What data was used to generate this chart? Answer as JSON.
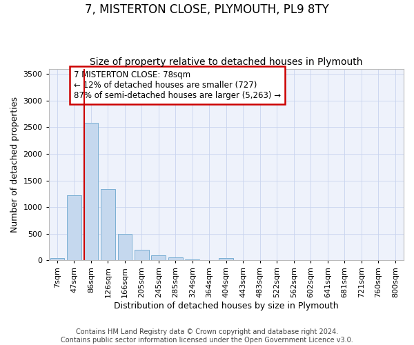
{
  "title": "7, MISTERTON CLOSE, PLYMOUTH, PL9 8TY",
  "subtitle": "Size of property relative to detached houses in Plymouth",
  "xlabel": "Distribution of detached houses by size in Plymouth",
  "ylabel": "Number of detached properties",
  "categories": [
    "7sqm",
    "47sqm",
    "86sqm",
    "126sqm",
    "166sqm",
    "205sqm",
    "245sqm",
    "285sqm",
    "324sqm",
    "364sqm",
    "404sqm",
    "443sqm",
    "483sqm",
    "522sqm",
    "562sqm",
    "602sqm",
    "641sqm",
    "681sqm",
    "721sqm",
    "760sqm",
    "800sqm"
  ],
  "values": [
    50,
    1220,
    2580,
    1340,
    500,
    200,
    100,
    60,
    20,
    5,
    45,
    5,
    5,
    2,
    1,
    1,
    1,
    1,
    1,
    1,
    1
  ],
  "bar_color": "#c5d8ee",
  "bar_edge_color": "#7bafd4",
  "marker_line_color": "#cc0000",
  "annotation_text": "7 MISTERTON CLOSE: 78sqm\n← 12% of detached houses are smaller (727)\n87% of semi-detached houses are larger (5,263) →",
  "annotation_box_color": "#cc0000",
  "ylim": [
    0,
    3600
  ],
  "yticks": [
    0,
    500,
    1000,
    1500,
    2000,
    2500,
    3000,
    3500
  ],
  "footer_line1": "Contains HM Land Registry data © Crown copyright and database right 2024.",
  "footer_line2": "Contains public sector information licensed under the Open Government Licence v3.0.",
  "bg_color": "#eef2fb",
  "grid_color": "#c8d4ee",
  "title_fontsize": 12,
  "subtitle_fontsize": 10,
  "axis_label_fontsize": 9,
  "tick_fontsize": 8,
  "annotation_fontsize": 8.5,
  "footer_fontsize": 7
}
